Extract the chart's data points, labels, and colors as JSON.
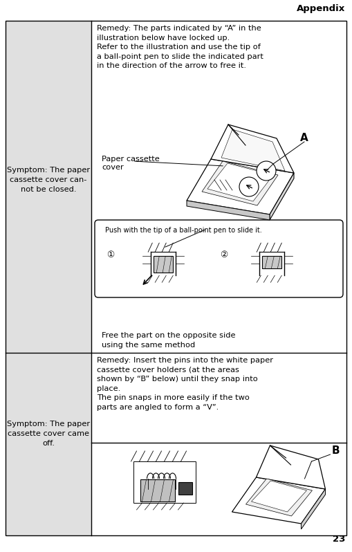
{
  "page_title": "Appendix",
  "page_number": "23",
  "bg_color": "#ffffff",
  "cell_left_bg": "#e0e0e0",
  "cell_right_bg": "#ffffff",
  "border_color": "#000000",
  "title_fontsize": 9.5,
  "body_fontsize": 8.2,
  "small_fontsize": 7.0,
  "row1": {
    "left_text": "Symptom: The paper\ncassette cover can-\nnot be closed.",
    "right_text_top": "Remedy: The parts indicated by “A” in the\nillustration below have locked up.\nRefer to the illustration and use the tip of\na ball-point pen to slide the indicated part\nin the direction of the arrow to free it.",
    "label_paper_cassette": "Paper cassette\ncover",
    "label_A": "A",
    "label_push": "Push with the tip of a ball-point pen to slide it.",
    "right_text_bottom": "Free the part on the opposite side\nusing the same method"
  },
  "row2": {
    "left_text": "Symptom: The paper\ncassette cover came\noff.",
    "right_text_top": "Remedy: Insert the pins into the white paper\ncassette cover holders (at the areas\nshown by “B” below) until they snap into\nplace.\nThe pin snaps in more easily if the two\nparts are angled to form a “V”.",
    "label_B": "B"
  },
  "figw": 5.09,
  "figh": 7.98,
  "dpi": 100
}
